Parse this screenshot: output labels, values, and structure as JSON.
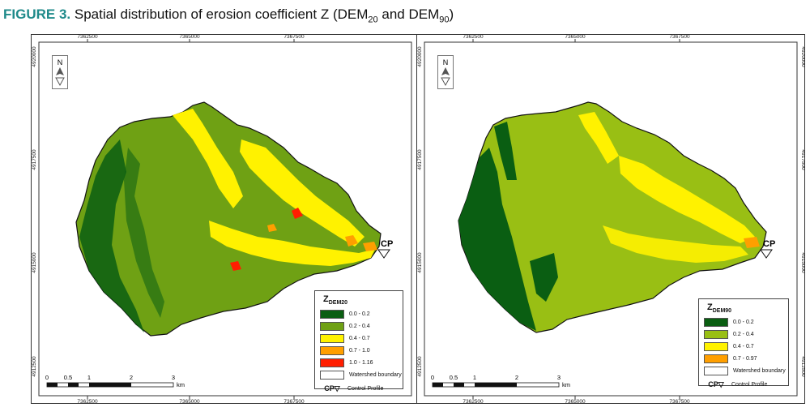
{
  "caption": {
    "figure": "FIGURE 3.",
    "text": "Spatial distribution of erosion coefficient Z (DEM",
    "sub1": "20",
    "mid": " and DEM",
    "sub2": "90",
    "end": ")"
  },
  "top_ticks": [
    "7362500",
    "7365000",
    "7367500"
  ],
  "bottom_ticks": [
    "7362500",
    "7365000",
    "7367500"
  ],
  "side_ticks": [
    "4920000",
    "4917500",
    "4915000",
    "4912500"
  ],
  "scale": {
    "labels": [
      "0",
      "0.5",
      "1",
      "2",
      "3"
    ],
    "unit": "km"
  },
  "cp_label": "CP",
  "left_legend": {
    "title": "Z",
    "title_sub": "DEM20",
    "items": [
      {
        "label": "0.0 - 0.2",
        "color": "#0a5e12"
      },
      {
        "label": "0.2 - 0.4",
        "color": "#6fa114"
      },
      {
        "label": "0.4 - 0.7",
        "color": "#fff200"
      },
      {
        "label": "0.7 - 1.0",
        "color": "#ff9f00"
      },
      {
        "label": "1.0 - 1.16",
        "color": "#ff1e00"
      },
      {
        "label": "Watershed boundary",
        "color": "#ffffff"
      }
    ],
    "cp_text": "Control Profile"
  },
  "right_legend": {
    "title": "Z",
    "title_sub": "DEM90",
    "items": [
      {
        "label": "0.0 - 0.2",
        "color": "#0a5e12"
      },
      {
        "label": "0.2 - 0.4",
        "color": "#99bf14"
      },
      {
        "label": "0.4 - 0.7",
        "color": "#fff200"
      },
      {
        "label": "0.7 - 0.97",
        "color": "#ff9f00"
      },
      {
        "label": "Watershed boundary",
        "color": "#ffffff"
      }
    ],
    "cp_text": "Control Profile"
  }
}
